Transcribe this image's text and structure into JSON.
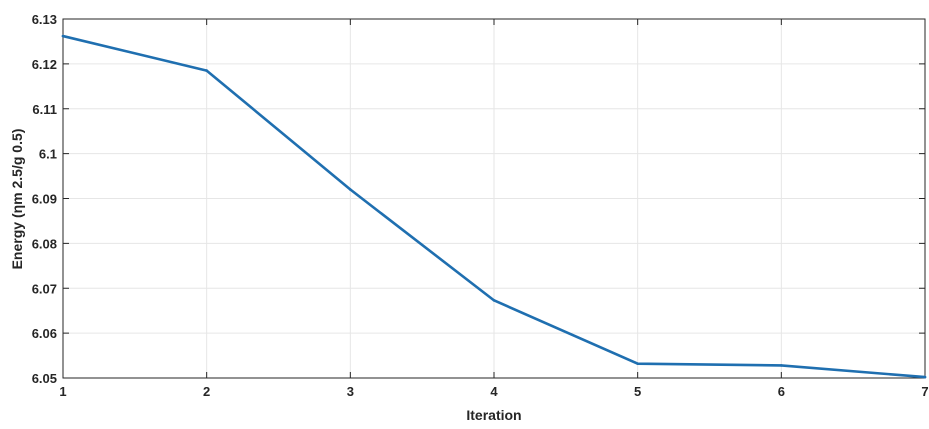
{
  "chart_data": {
    "type": "line",
    "title": "",
    "xlabel": "Iteration",
    "ylabel": "Energy (ηm 2.5/g 0.5)",
    "xlim": [
      1,
      7
    ],
    "ylim": [
      6.05,
      6.13
    ],
    "x_ticks": [
      "1",
      "2",
      "3",
      "4",
      "5",
      "6",
      "7"
    ],
    "y_ticks": [
      "6.05",
      "6.06",
      "6.07",
      "6.08",
      "6.09",
      "6.1",
      "6.11",
      "6.12",
      "6.13"
    ],
    "grid": true,
    "legend": "none",
    "series": [
      {
        "color": "#1f6fb0",
        "x": [
          1,
          2,
          3,
          4,
          5,
          6,
          7
        ],
        "y": [
          6.1262,
          6.1185,
          6.092,
          6.0673,
          6.0532,
          6.0528,
          6.0502
        ]
      }
    ]
  }
}
